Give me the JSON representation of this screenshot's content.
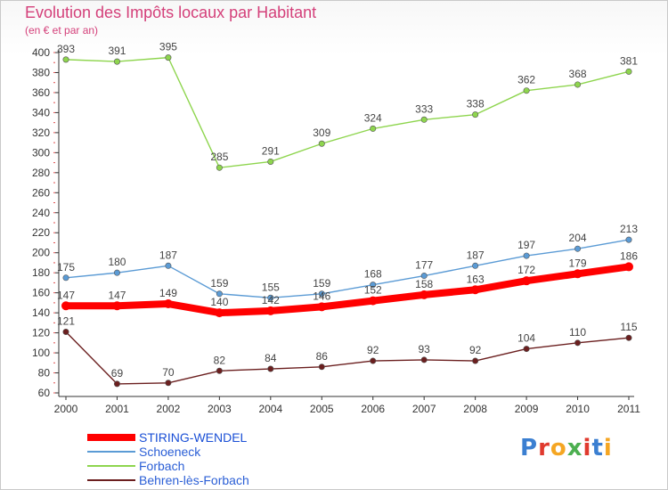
{
  "chart_data": {
    "type": "line",
    "title": "Evolution des Impôts locaux par Habitant",
    "subtitle": "(en € et par an)",
    "x": [
      "2000",
      "2001",
      "2002",
      "2003",
      "2004",
      "2005",
      "2006",
      "2007",
      "2008",
      "2009",
      "2010",
      "2011"
    ],
    "ylim": [
      60,
      400
    ],
    "yticks": [
      "60",
      "80",
      "100",
      "120",
      "140",
      "160",
      "180",
      "200",
      "220",
      "240",
      "260",
      "280",
      "300",
      "320",
      "340",
      "360",
      "380",
      "400"
    ],
    "grid": false,
    "legend_position": "bottom-left",
    "series": [
      {
        "name": "STIRING-WENDEL",
        "color": "#ff0000",
        "values": [
          147,
          147,
          149,
          140,
          142,
          146,
          152,
          158,
          163,
          172,
          179,
          186
        ]
      },
      {
        "name": "Schoeneck",
        "color": "#5b9bd5",
        "values": [
          175,
          180,
          187,
          159,
          155,
          159,
          168,
          177,
          187,
          197,
          204,
          213
        ]
      },
      {
        "name": "Forbach",
        "color": "#8ed54e",
        "values": [
          393,
          391,
          395,
          285,
          291,
          309,
          324,
          333,
          338,
          362,
          368,
          381
        ]
      },
      {
        "name": "Behren-lès-Forbach",
        "color": "#6b1f1f",
        "values": [
          121,
          69,
          70,
          82,
          84,
          86,
          92,
          93,
          92,
          104,
          110,
          115
        ]
      }
    ]
  },
  "logo": {
    "letters": [
      "P",
      "r",
      "o",
      "x",
      "i",
      "t",
      "i"
    ],
    "colors": [
      "#3b7fd1",
      "#e03a2e",
      "#f5a623",
      "#4caf50",
      "#e03a2e",
      "#3b7fd1",
      "#f5a623"
    ]
  }
}
